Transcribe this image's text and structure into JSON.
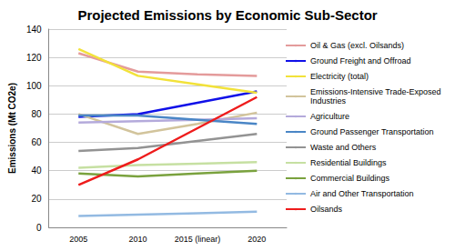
{
  "chart_data": {
    "type": "line",
    "title": "Projected Emissions by Economic Sub-Sector",
    "y_label": "Emissions (Mt CO2e)",
    "categories": [
      "2005",
      "2010",
      "2015 (linear)",
      "2020"
    ],
    "ylim": [
      0,
      140
    ],
    "yticks": [
      0,
      20,
      40,
      60,
      80,
      100,
      120,
      140
    ],
    "grid": true,
    "legend": "right",
    "series": [
      {
        "name": "Oil & Gas (excl. Oilsands)",
        "color": "#e49b9b",
        "values": [
          123,
          110,
          108,
          107
        ]
      },
      {
        "name": "Ground Freight and Offroad",
        "color": "#1010e8",
        "values": [
          78,
          80,
          88,
          96
        ]
      },
      {
        "name": "Electricity (total)",
        "color": "#f2e23a",
        "values": [
          126,
          107,
          101,
          95
        ]
      },
      {
        "name": "Emissions-Intensive Trade-Exposed Industries",
        "color": "#d2c49c",
        "values": [
          80,
          66,
          73,
          81
        ]
      },
      {
        "name": "Agriculture",
        "color": "#b4aadb",
        "values": [
          74,
          75,
          76,
          77
        ]
      },
      {
        "name": "Ground Passenger Transportation",
        "color": "#4a86c6",
        "values": [
          79,
          79,
          76,
          73
        ]
      },
      {
        "name": "Waste and Others",
        "color": "#939393",
        "values": [
          54,
          56,
          61,
          66
        ]
      },
      {
        "name": "Residential Buildings",
        "color": "#c6e0a2",
        "values": [
          42,
          44,
          45,
          46
        ]
      },
      {
        "name": "Commercial Buildings",
        "color": "#7aa23e",
        "values": [
          38,
          36,
          38,
          40
        ]
      },
      {
        "name": "Air and Other Transportation",
        "color": "#93bae2",
        "values": [
          8,
          9,
          10,
          11
        ]
      },
      {
        "name": "Oilsands",
        "color": "#ee1c1c",
        "values": [
          30,
          48,
          70,
          92
        ]
      }
    ]
  }
}
